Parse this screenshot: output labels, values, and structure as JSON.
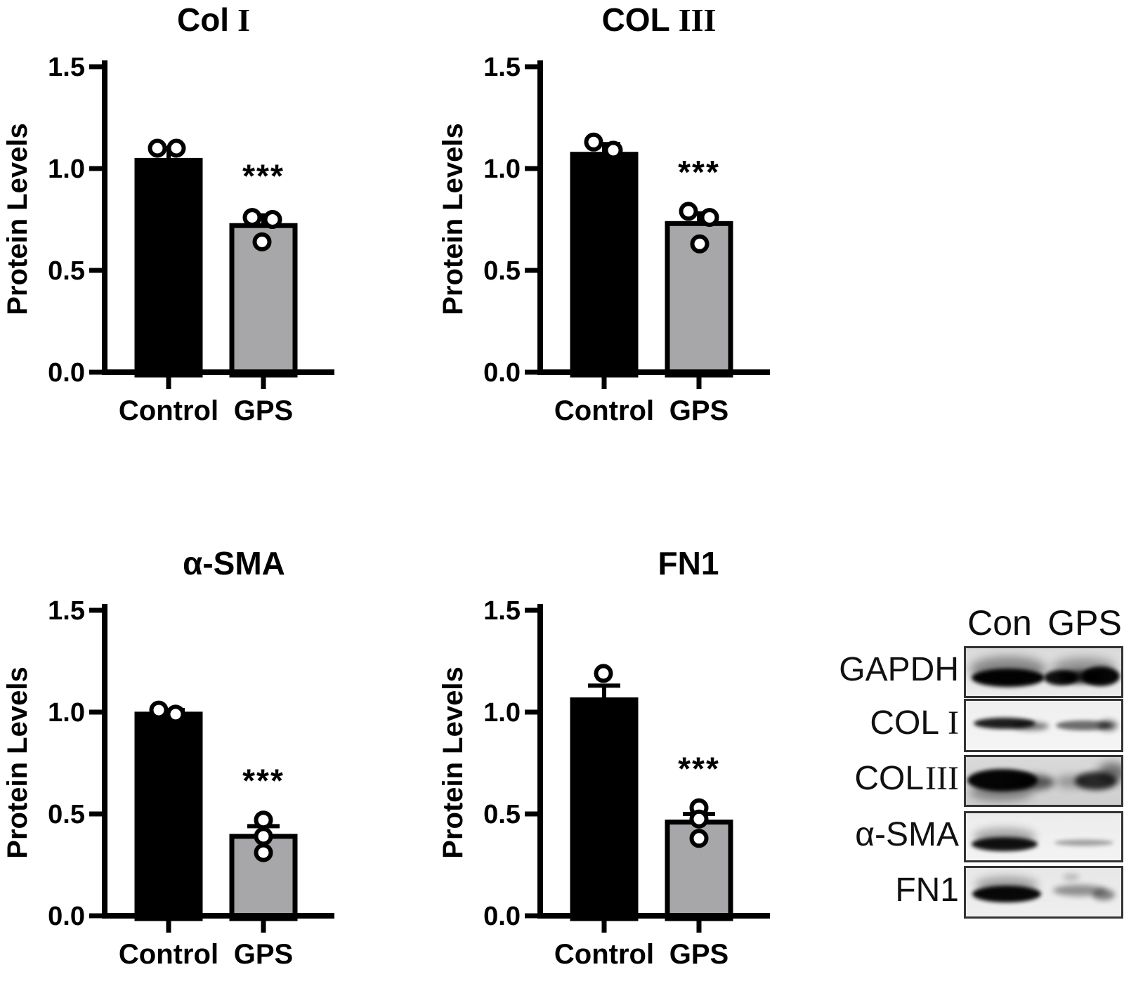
{
  "page": {
    "background": "#ffffff"
  },
  "colors": {
    "control_bar": "#000000",
    "gps_bar": "#a7a7aa",
    "axis": "#000000"
  },
  "chart_data": [
    {
      "type": "bar",
      "title": "Col I",
      "title_main": "Col",
      "title_numeral": "I",
      "ylabel": "Protein Levels",
      "ylim": [
        0,
        1.5
      ],
      "yticks": [
        "0.0",
        "0.5",
        "1.0",
        "1.5"
      ],
      "categories": [
        "Control",
        "GPS"
      ],
      "grid": false,
      "legend": "none",
      "series": [
        {
          "name": "Control",
          "mean": 1.04,
          "sd_up": 0.06,
          "color": "#000000",
          "points": [
            [
              -16,
              1.1
            ],
            [
              11,
              1.1
            ]
          ],
          "significance": ""
        },
        {
          "name": "GPS",
          "mean": 0.72,
          "sd_up": 0.05,
          "color": "#a7a7aa",
          "points": [
            [
              -16,
              0.76
            ],
            [
              13,
              0.75
            ],
            [
              -2,
              0.64
            ]
          ],
          "significance": "***"
        }
      ]
    },
    {
      "type": "bar",
      "title": "COL III",
      "title_main": "COL",
      "title_numeral": "III",
      "ylabel": "Protein Levels",
      "ylim": [
        0,
        1.5
      ],
      "yticks": [
        "0.0",
        "0.5",
        "1.0",
        "1.5"
      ],
      "categories": [
        "Control",
        "GPS"
      ],
      "grid": false,
      "legend": "none",
      "series": [
        {
          "name": "Control",
          "mean": 1.07,
          "sd_up": 0.05,
          "color": "#000000",
          "points": [
            [
              -15,
              1.13
            ],
            [
              13,
              1.09
            ]
          ],
          "significance": ""
        },
        {
          "name": "GPS",
          "mean": 0.73,
          "sd_up": 0.05,
          "color": "#a7a7aa",
          "points": [
            [
              -15,
              0.79
            ],
            [
              15,
              0.76
            ],
            [
              1,
              0.63
            ]
          ],
          "significance": "***"
        }
      ]
    },
    {
      "type": "bar",
      "title": "α-SMA",
      "title_main": "α-SMA",
      "title_numeral": "",
      "ylabel": "Protein Levels",
      "ylim": [
        0,
        1.5
      ],
      "yticks": [
        "0.0",
        "0.5",
        "1.0",
        "1.5"
      ],
      "categories": [
        "Control",
        "GPS"
      ],
      "grid": false,
      "legend": "none",
      "series": [
        {
          "name": "Control",
          "mean": 0.99,
          "sd_up": 0.02,
          "color": "#000000",
          "points": [
            [
              -14,
              1.01
            ],
            [
              10,
              0.99
            ]
          ],
          "significance": ""
        },
        {
          "name": "GPS",
          "mean": 0.39,
          "sd_up": 0.05,
          "color": "#a7a7aa",
          "points": [
            [
              0,
              0.47
            ],
            [
              0,
              0.39
            ],
            [
              0,
              0.31
            ]
          ],
          "significance": "***"
        }
      ]
    },
    {
      "type": "bar",
      "title": "FN1",
      "title_main": "FN1",
      "title_numeral": "",
      "ylabel": "Protein Levels",
      "ylim": [
        0,
        1.5
      ],
      "yticks": [
        "0.0",
        "0.5",
        "1.0",
        "1.5"
      ],
      "categories": [
        "Control",
        "GPS"
      ],
      "grid": false,
      "legend": "none",
      "series": [
        {
          "name": "Control",
          "mean": 1.06,
          "sd_up": 0.07,
          "color": "#000000",
          "points": [
            [
              -1,
              1.19
            ]
          ],
          "significance": ""
        },
        {
          "name": "GPS",
          "mean": 0.46,
          "sd_up": 0.04,
          "color": "#a7a7aa",
          "points": [
            [
              0,
              0.53
            ],
            [
              0,
              0.475
            ],
            [
              0,
              0.38
            ]
          ],
          "significance": "***"
        }
      ]
    }
  ],
  "blot": {
    "lane_headers": [
      "Con",
      "GPS"
    ],
    "rows": [
      {
        "label_main": "GAPDH",
        "label_numeral": "",
        "numeral_gap": 0,
        "bg": [
          "#dadada",
          "#ececec"
        ],
        "bands": [
          [
            60,
            42,
            52,
            13,
            0.98,
            3
          ],
          [
            60,
            30,
            55,
            18,
            0.4,
            7
          ],
          [
            135,
            42,
            24,
            11,
            0.92,
            3
          ],
          [
            192,
            40,
            27,
            14,
            0.96,
            3
          ],
          [
            163,
            41,
            32,
            9,
            0.85,
            4
          ],
          [
            168,
            28,
            46,
            14,
            0.35,
            7
          ]
        ]
      },
      {
        "label_main": "COL",
        "label_numeral": "I",
        "numeral_gap": 12,
        "bg": [
          "#efefef",
          "#f5f5f5"
        ],
        "bands": [
          [
            55,
            32,
            44,
            8,
            0.88,
            3
          ],
          [
            92,
            36,
            26,
            6,
            0.5,
            4
          ],
          [
            168,
            35,
            40,
            7,
            0.55,
            3
          ],
          [
            202,
            35,
            14,
            8,
            0.5,
            4
          ]
        ]
      },
      {
        "label_main": "COL",
        "label_numeral": "III",
        "numeral_gap": 2,
        "bg": [
          "#d9d9d9",
          "#cfcfcf"
        ],
        "bands": [
          [
            52,
            33,
            50,
            16,
            0.97,
            3
          ],
          [
            96,
            36,
            30,
            11,
            0.6,
            5
          ],
          [
            50,
            50,
            45,
            12,
            0.4,
            7
          ],
          [
            185,
            34,
            30,
            13,
            0.8,
            4
          ],
          [
            150,
            35,
            22,
            9,
            0.3,
            6
          ],
          [
            208,
            22,
            20,
            14,
            0.5,
            7
          ]
        ]
      },
      {
        "label_main": "α-SMA",
        "label_numeral": "",
        "numeral_gap": 0,
        "bg": [
          "#ececec",
          "#f3f3f3"
        ],
        "bands": [
          [
            55,
            44,
            47,
            10,
            0.92,
            3
          ],
          [
            55,
            33,
            45,
            12,
            0.3,
            6
          ],
          [
            168,
            42,
            42,
            4.5,
            0.33,
            3
          ]
        ]
      },
      {
        "label_main": "FN1",
        "label_numeral": "",
        "numeral_gap": 0,
        "bg": [
          "#e7e7e7",
          "#efefef"
        ],
        "bands": [
          [
            58,
            37,
            49,
            12,
            0.96,
            3
          ],
          [
            58,
            24,
            45,
            12,
            0.3,
            6
          ],
          [
            162,
            32,
            38,
            8,
            0.38,
            4
          ],
          [
            196,
            38,
            16,
            8,
            0.45,
            4
          ],
          [
            150,
            13,
            12,
            5,
            0.2,
            4
          ]
        ]
      }
    ]
  }
}
